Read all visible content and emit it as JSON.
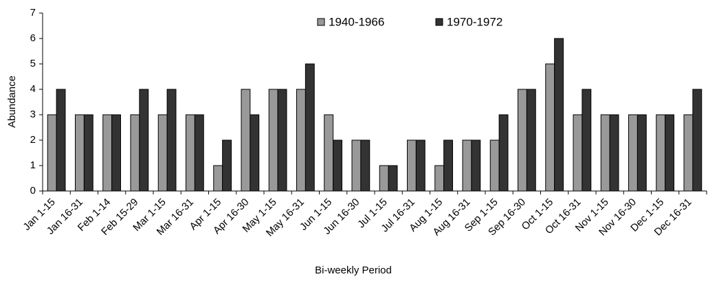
{
  "chart_data": {
    "type": "bar",
    "x_label": "Bi-weekly Period",
    "y_label": "Abundance",
    "categories": [
      "Jan 1-15",
      "Jan 16-31",
      "Feb 1-14",
      "Feb 15-29",
      "Mar 1-15",
      "Mar 16-31",
      "Apr 1-15",
      "Apr 16-30",
      "May 1-15",
      "May 16-31",
      "Jun 1-15",
      "Jun 16-30",
      "Jul 1-15",
      "Jul 16-31",
      "Aug 1-15",
      "Aug 16-31",
      "Sep 1-15",
      "Sep 16-30",
      "Oct 1-15",
      "Oct 16-31",
      "Nov 1-15",
      "Nov 16-30",
      "Dec 1-15",
      "Dec 16-31"
    ],
    "series": [
      {
        "name": "1940-1966",
        "color": "#999999",
        "values": [
          3,
          3,
          3,
          3,
          3,
          3,
          1,
          4,
          4,
          4,
          3,
          2,
          1,
          2,
          1,
          2,
          2,
          4,
          5,
          3,
          3,
          3,
          3,
          3
        ]
      },
      {
        "name": "1970-1972",
        "color": "#333333",
        "values": [
          4,
          3,
          3,
          4,
          4,
          3,
          2,
          3,
          4,
          5,
          2,
          2,
          1,
          2,
          2,
          2,
          3,
          4,
          6,
          4,
          3,
          3,
          3,
          4
        ]
      }
    ],
    "ylim": [
      0,
      7
    ],
    "yticks": [
      0,
      1,
      2,
      3,
      4,
      5,
      6,
      7
    ],
    "grid": false,
    "legend": "top"
  }
}
